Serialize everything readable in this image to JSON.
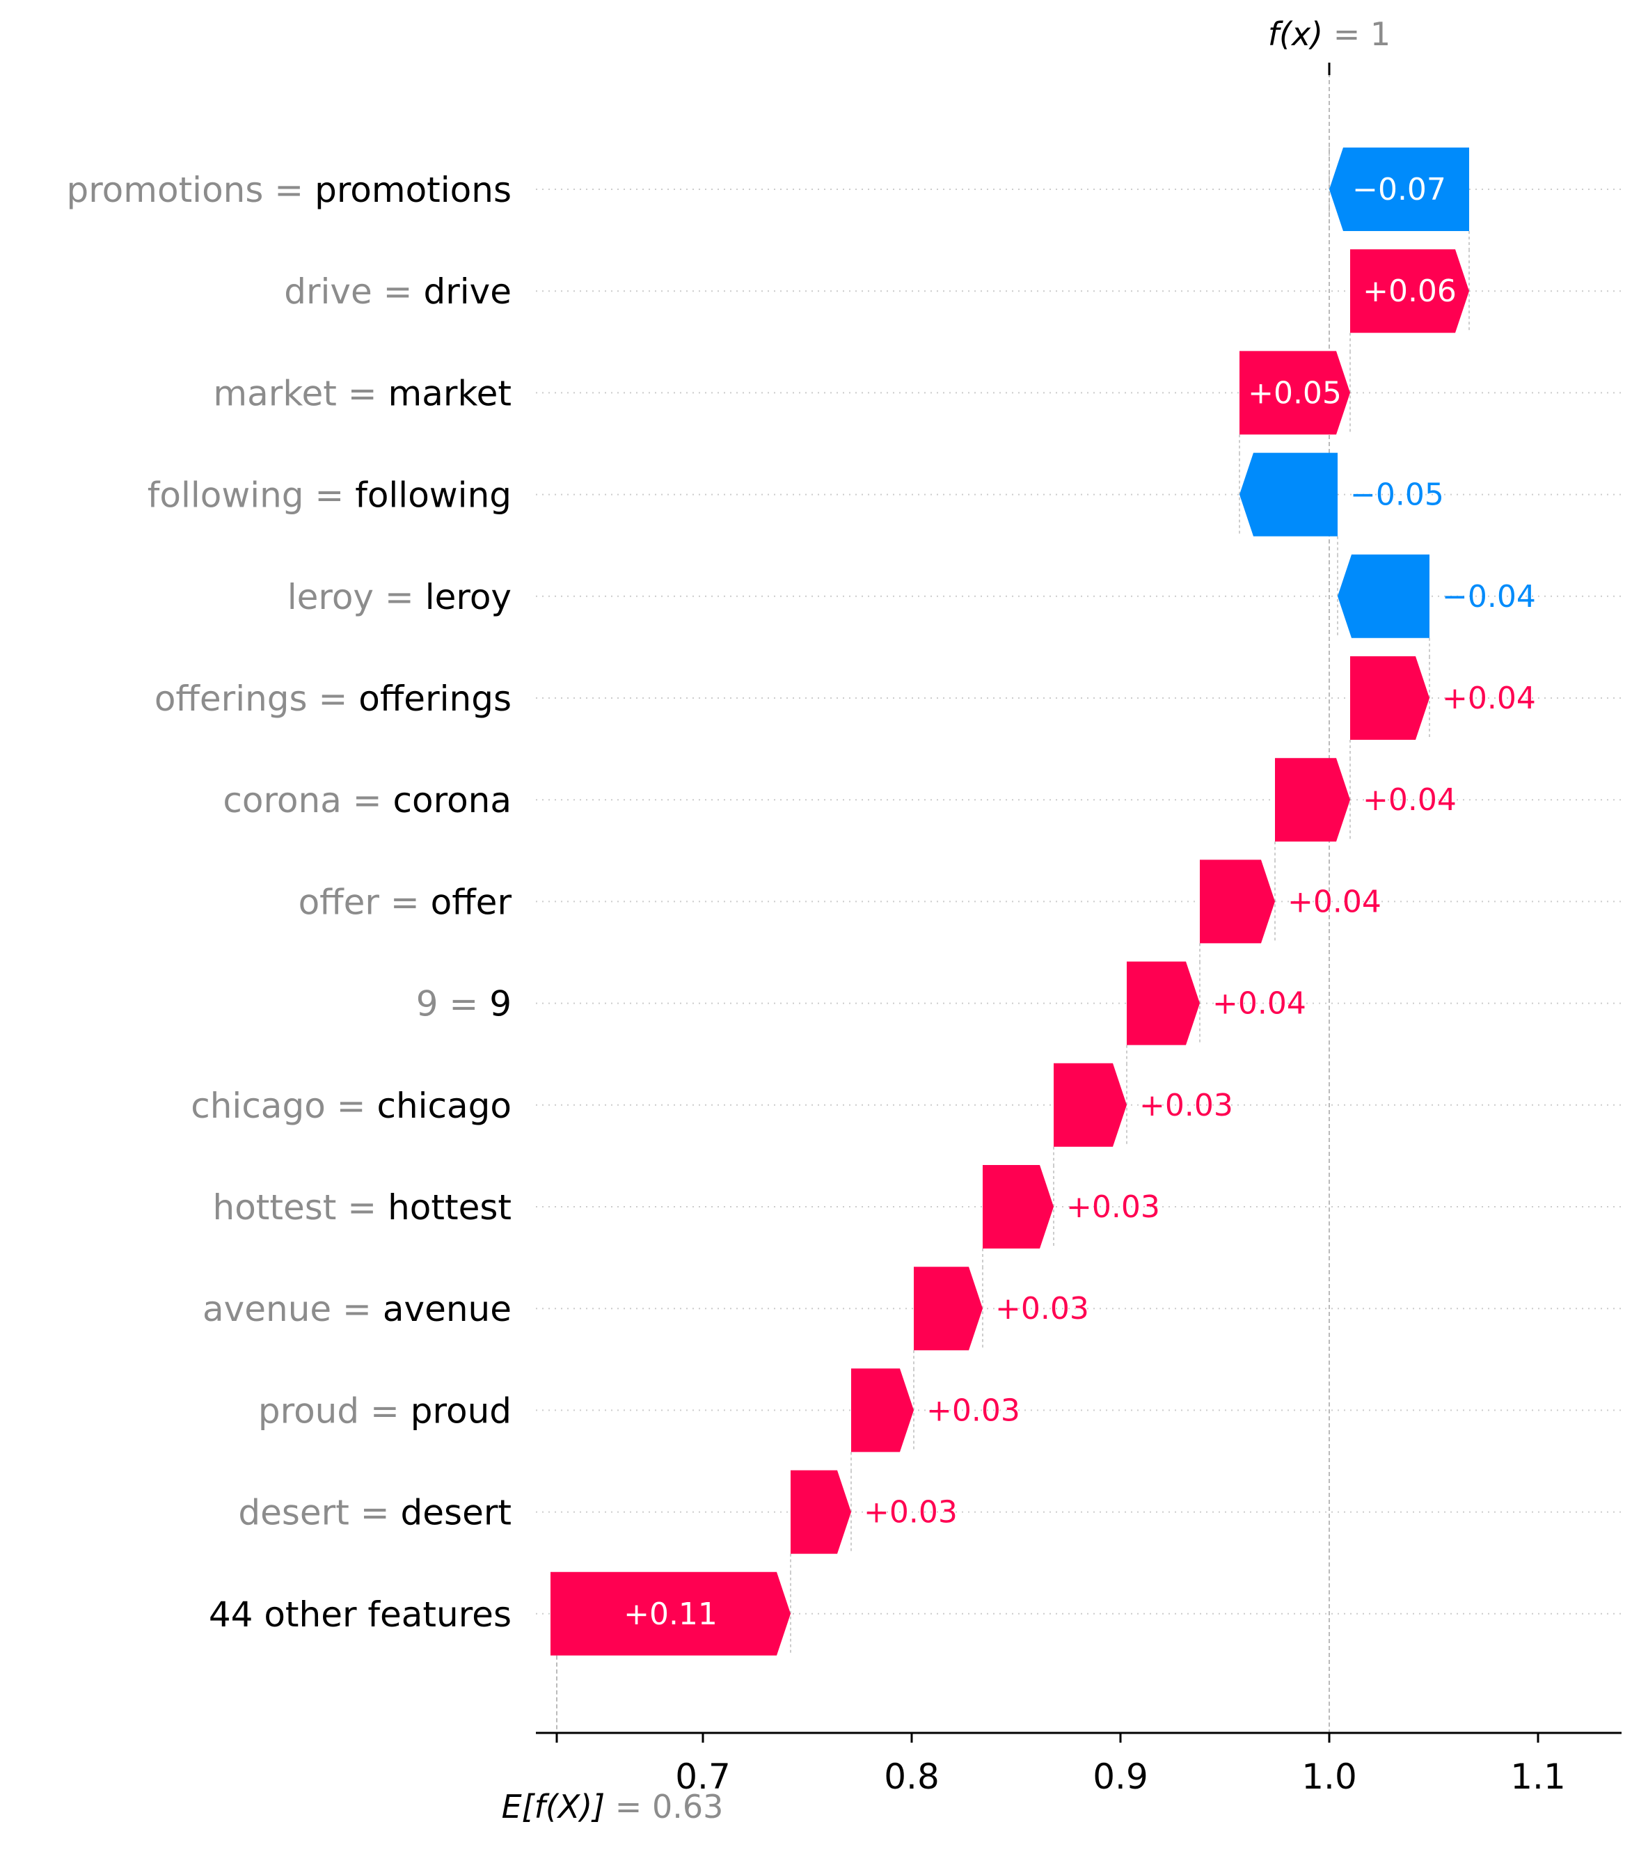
{
  "chart_data": {
    "type": "waterfall",
    "colors": {
      "positive": "#ff0051",
      "negative": "#008bfb",
      "grid": "#cccccc"
    },
    "base_value": 0.63,
    "final_value": 1,
    "f_label": {
      "name": "f(x)",
      "eq": "= 1"
    },
    "e_label": {
      "name": "E[f(X)]",
      "eq": "= 0.63"
    },
    "xlim": [
      0.62,
      1.14
    ],
    "xticks": [
      "0.7",
      "0.8",
      "0.9",
      "1.0",
      "1.1"
    ],
    "xtick_values": [
      0.7,
      0.8,
      0.9,
      1.0,
      1.1
    ],
    "features": [
      {
        "name": "promotions",
        "value": "promotions",
        "start": 1.067,
        "end": 1.0,
        "label": "−0.07",
        "sign": "neg"
      },
      {
        "name": "drive",
        "value": "drive",
        "start": 1.01,
        "end": 1.067,
        "label": "+0.06",
        "sign": "pos"
      },
      {
        "name": "market",
        "value": "market",
        "start": 0.957,
        "end": 1.01,
        "label": "+0.05",
        "sign": "pos"
      },
      {
        "name": "following",
        "value": "following",
        "start": 1.004,
        "end": 0.957,
        "label": "−0.05",
        "sign": "neg"
      },
      {
        "name": "leroy",
        "value": "leroy",
        "start": 1.048,
        "end": 1.004,
        "label": "−0.04",
        "sign": "neg"
      },
      {
        "name": "offerings",
        "value": "offerings",
        "start": 1.01,
        "end": 1.048,
        "label": "+0.04",
        "sign": "pos"
      },
      {
        "name": "corona",
        "value": "corona",
        "start": 0.974,
        "end": 1.01,
        "label": "+0.04",
        "sign": "pos"
      },
      {
        "name": "offer",
        "value": "offer",
        "start": 0.938,
        "end": 0.974,
        "label": "+0.04",
        "sign": "pos"
      },
      {
        "name": "9",
        "value": "9",
        "start": 0.903,
        "end": 0.938,
        "label": "+0.04",
        "sign": "pos"
      },
      {
        "name": "chicago",
        "value": "chicago",
        "start": 0.868,
        "end": 0.903,
        "label": "+0.03",
        "sign": "pos"
      },
      {
        "name": "hottest",
        "value": "hottest",
        "start": 0.834,
        "end": 0.868,
        "label": "+0.03",
        "sign": "pos"
      },
      {
        "name": "avenue",
        "value": "avenue",
        "start": 0.801,
        "end": 0.834,
        "label": "+0.03",
        "sign": "pos"
      },
      {
        "name": "proud",
        "value": "proud",
        "start": 0.771,
        "end": 0.801,
        "label": "+0.03",
        "sign": "pos"
      },
      {
        "name": "desert",
        "value": "desert",
        "start": 0.742,
        "end": 0.771,
        "label": "+0.03",
        "sign": "pos"
      },
      {
        "name": "44 other features",
        "value": "",
        "start": 0.627,
        "end": 0.742,
        "label": "+0.11",
        "sign": "pos",
        "other": true
      }
    ]
  }
}
